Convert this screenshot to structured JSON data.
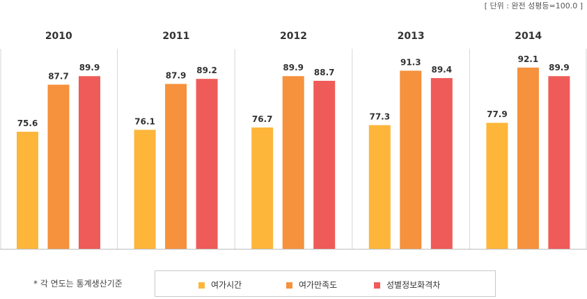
{
  "unit_note": "[ 단위 : 완전 성평등=100.0 ]",
  "footnote": "* 각 연도는 통계생산기준",
  "colors": {
    "series": [
      "#fdb63a",
      "#f6913d",
      "#ef5b58"
    ],
    "divider": "#d5d5d5",
    "baseline": "#bdbdbd",
    "label": "#333333"
  },
  "chart_data": {
    "type": "bar",
    "categories": [
      "2010",
      "2011",
      "2012",
      "2013",
      "2014"
    ],
    "series": [
      {
        "name": "여가시간",
        "values": [
          75.6,
          76.1,
          76.7,
          77.3,
          77.9
        ],
        "labels": [
          "75.6",
          "76.1",
          "76.7",
          "77.3",
          "77.9"
        ]
      },
      {
        "name": "여가만족도",
        "values": [
          87.7,
          87.9,
          89.9,
          91.3,
          92.1
        ],
        "labels": [
          "87.7",
          "87.9",
          "89.9",
          "91.3",
          "92.1"
        ]
      },
      {
        "name": "성별정보화격차",
        "values": [
          89.9,
          89.2,
          88.7,
          89.4,
          89.9
        ],
        "labels": [
          "89.9",
          "89.2",
          "88.7",
          "89.4",
          "89.9"
        ]
      }
    ],
    "grid": false,
    "legend_position": "bottom"
  }
}
